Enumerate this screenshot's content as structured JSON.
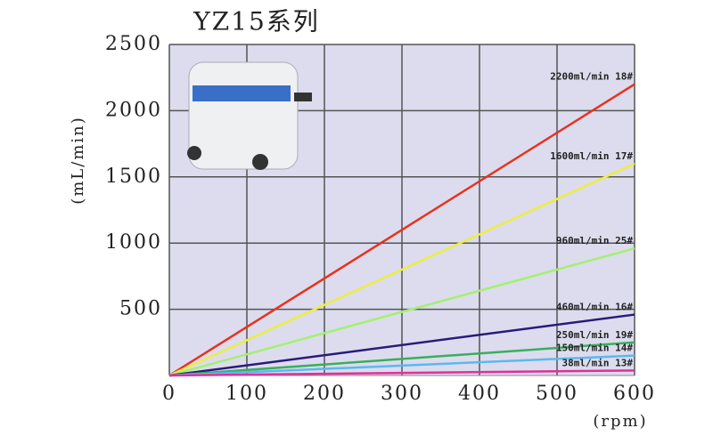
{
  "chart_data": {
    "type": "line",
    "title": "YZ15系列",
    "y_label": "(mL/min)",
    "x_label": "(rpm)",
    "x": [
      0,
      600
    ],
    "series": [
      {
        "name": "2200ml/min 18#",
        "color": "#e8321e",
        "values": [
          0,
          2200
        ]
      },
      {
        "name": "1600ml/min 17#",
        "color": "#eeee40",
        "values": [
          0,
          1600
        ]
      },
      {
        "name": "960ml/min 25#",
        "color": "#a4f070",
        "values": [
          0,
          960
        ]
      },
      {
        "name": "460ml/min 16#",
        "color": "#2a1a7a",
        "values": [
          0,
          460
        ]
      },
      {
        "name": "250ml/min 19#",
        "color": "#3aae5e",
        "values": [
          0,
          250
        ]
      },
      {
        "name": "150ml/min 14#",
        "color": "#5cb8f0",
        "values": [
          0,
          150
        ]
      },
      {
        "name": "38ml/min 13#",
        "color": "#e0309a",
        "values": [
          0,
          38
        ]
      }
    ],
    "xlim": [
      0,
      600
    ],
    "xticks": [
      0,
      100,
      200,
      300,
      400,
      500,
      600
    ],
    "ylim": [
      0,
      2500
    ],
    "yticks": [
      500,
      1000,
      1500,
      2000,
      2500
    ],
    "grid": true
  }
}
